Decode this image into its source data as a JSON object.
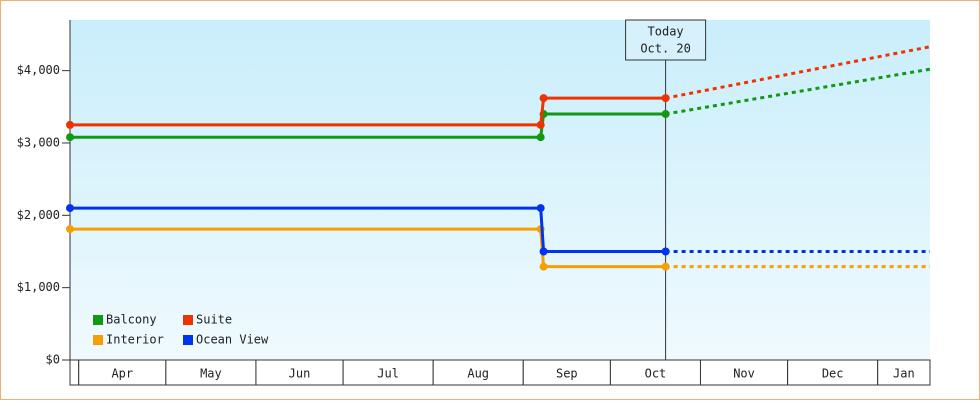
{
  "chart_data": {
    "type": "step-line",
    "xlim": [
      "03-29",
      "01-19"
    ],
    "xticks": [
      {
        "value": "04-01",
        "label": "Apr"
      },
      {
        "value": "05-01",
        "label": "May"
      },
      {
        "value": "06-01",
        "label": "Jun"
      },
      {
        "value": "07-01",
        "label": "Jul"
      },
      {
        "value": "08-01",
        "label": "Aug"
      },
      {
        "value": "09-01",
        "label": "Sep"
      },
      {
        "value": "10-01",
        "label": "Oct"
      },
      {
        "value": "11-01",
        "label": "Nov"
      },
      {
        "value": "12-01",
        "label": "Dec"
      },
      {
        "value": "01-01",
        "label": "Jan"
      }
    ],
    "ylim": [
      0,
      4700
    ],
    "yticks": [
      {
        "value": 0,
        "label": "$0"
      },
      {
        "value": 1000,
        "label": "$1,000"
      },
      {
        "value": 2000,
        "label": "$2,000"
      },
      {
        "value": 3000,
        "label": "$3,000"
      },
      {
        "value": 4000,
        "label": "$4,000"
      }
    ],
    "x": [
      "03-29",
      "09-07",
      "09-08",
      "10-20",
      "01-19"
    ],
    "today": {
      "label": "Today",
      "date_label": "Oct. 20",
      "x": "10-20"
    },
    "series": [
      {
        "name": "Balcony",
        "color": "#119911",
        "values": [
          3080,
          3080,
          3400,
          3400,
          4020
        ]
      },
      {
        "name": "Suite",
        "color": "#ee3300",
        "values": [
          3250,
          3250,
          3620,
          3620,
          4330
        ]
      },
      {
        "name": "Interior",
        "color": "#f5a000",
        "values": [
          1810,
          1810,
          1290,
          1290,
          1290
        ]
      },
      {
        "name": "Ocean View",
        "color": "#0033ee",
        "values": [
          2100,
          2100,
          1500,
          1500,
          1500
        ]
      }
    ],
    "legend": "bottom-left"
  }
}
